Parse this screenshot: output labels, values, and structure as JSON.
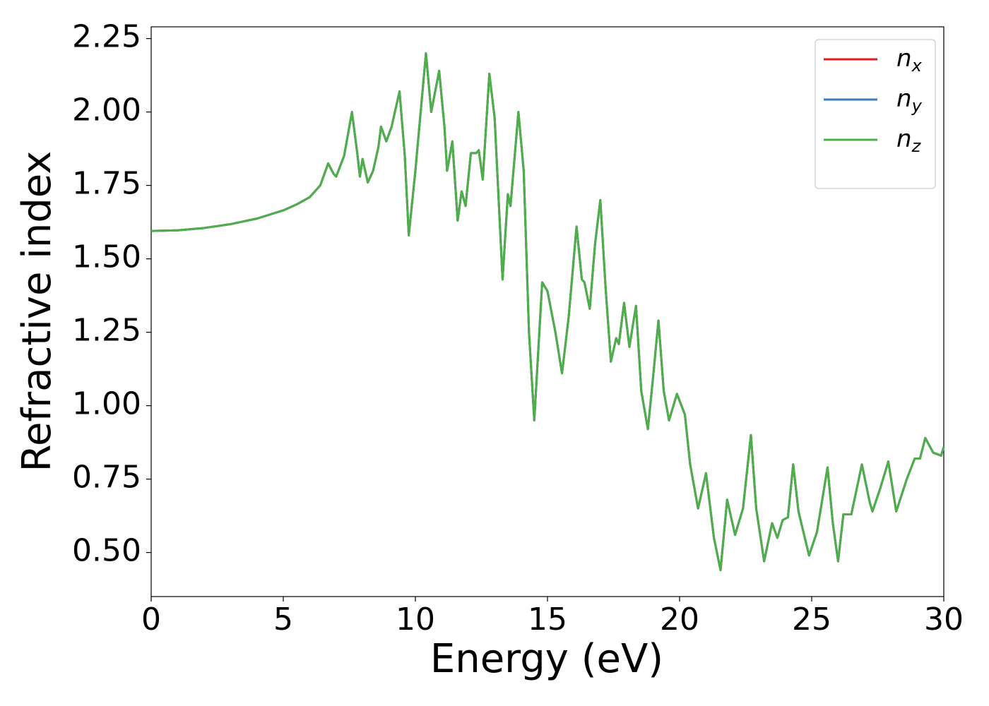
{
  "chart_data": {
    "type": "line",
    "xlabel": "Energy (eV)",
    "ylabel": "Refractive index",
    "x": [
      0,
      1,
      2,
      3,
      4,
      5,
      5.5,
      6,
      6.4,
      6.7,
      6.9,
      7.0,
      7.3,
      7.6,
      7.8,
      7.9,
      8.0,
      8.2,
      8.4,
      8.6,
      8.7,
      8.9,
      9.1,
      9.4,
      9.6,
      9.75,
      10.0,
      10.2,
      10.4,
      10.6,
      10.9,
      11.1,
      11.2,
      11.4,
      11.6,
      11.75,
      11.9,
      12.1,
      12.3,
      12.4,
      12.55,
      12.8,
      13.0,
      13.3,
      13.5,
      13.6,
      13.9,
      14.1,
      14.3,
      14.5,
      14.8,
      15.0,
      15.3,
      15.55,
      15.8,
      16.1,
      16.3,
      16.4,
      16.6,
      16.8,
      17.0,
      17.2,
      17.4,
      17.6,
      17.7,
      17.9,
      18.1,
      18.35,
      18.55,
      18.8,
      19.0,
      19.2,
      19.4,
      19.6,
      19.9,
      20.2,
      20.4,
      20.7,
      21.0,
      21.3,
      21.55,
      21.8,
      22.1,
      22.4,
      22.7,
      22.9,
      23.2,
      23.5,
      23.7,
      23.9,
      24.1,
      24.3,
      24.5,
      24.9,
      25.2,
      25.6,
      25.8,
      26.0,
      26.2,
      26.5,
      26.9,
      27.2,
      27.3,
      27.6,
      27.9,
      28.2,
      28.6,
      28.9,
      29.1,
      29.3,
      29.6,
      29.9,
      30
    ],
    "series": [
      {
        "name": "nx",
        "color": "#e41a1c",
        "values": [
          1.595,
          1.597,
          1.605,
          1.618,
          1.637,
          1.665,
          1.685,
          1.71,
          1.75,
          1.825,
          1.79,
          1.78,
          1.85,
          2.0,
          1.86,
          1.78,
          1.84,
          1.76,
          1.8,
          1.88,
          1.95,
          1.9,
          1.95,
          2.07,
          1.85,
          1.58,
          1.8,
          2.0,
          2.2,
          2.0,
          2.14,
          1.95,
          1.8,
          1.9,
          1.63,
          1.73,
          1.68,
          1.86,
          1.86,
          1.87,
          1.77,
          2.13,
          1.98,
          1.43,
          1.72,
          1.68,
          2.0,
          1.8,
          1.25,
          0.95,
          1.42,
          1.39,
          1.25,
          1.11,
          1.3,
          1.61,
          1.43,
          1.42,
          1.33,
          1.55,
          1.7,
          1.4,
          1.15,
          1.23,
          1.21,
          1.35,
          1.2,
          1.34,
          1.05,
          0.92,
          1.1,
          1.29,
          1.05,
          0.95,
          1.04,
          0.97,
          0.8,
          0.65,
          0.77,
          0.55,
          0.44,
          0.68,
          0.56,
          0.65,
          0.9,
          0.65,
          0.47,
          0.6,
          0.55,
          0.61,
          0.62,
          0.8,
          0.64,
          0.49,
          0.57,
          0.79,
          0.6,
          0.47,
          0.63,
          0.63,
          0.8,
          0.67,
          0.64,
          0.72,
          0.81,
          0.64,
          0.75,
          0.82,
          0.82,
          0.89,
          0.84,
          0.83,
          0.86
        ]
      },
      {
        "name": "ny",
        "color": "#377eb8",
        "values": [
          1.595,
          1.597,
          1.605,
          1.618,
          1.637,
          1.665,
          1.685,
          1.71,
          1.75,
          1.825,
          1.79,
          1.78,
          1.85,
          2.0,
          1.86,
          1.78,
          1.84,
          1.76,
          1.8,
          1.88,
          1.95,
          1.9,
          1.95,
          2.07,
          1.85,
          1.58,
          1.8,
          2.0,
          2.2,
          2.0,
          2.14,
          1.95,
          1.8,
          1.9,
          1.63,
          1.73,
          1.68,
          1.86,
          1.86,
          1.87,
          1.77,
          2.13,
          1.98,
          1.43,
          1.72,
          1.68,
          2.0,
          1.8,
          1.25,
          0.95,
          1.42,
          1.39,
          1.25,
          1.11,
          1.3,
          1.61,
          1.43,
          1.42,
          1.33,
          1.55,
          1.7,
          1.4,
          1.15,
          1.23,
          1.21,
          1.35,
          1.2,
          1.34,
          1.05,
          0.92,
          1.1,
          1.29,
          1.05,
          0.95,
          1.04,
          0.97,
          0.8,
          0.65,
          0.77,
          0.55,
          0.44,
          0.68,
          0.56,
          0.65,
          0.9,
          0.65,
          0.47,
          0.6,
          0.55,
          0.61,
          0.62,
          0.8,
          0.64,
          0.49,
          0.57,
          0.79,
          0.6,
          0.47,
          0.63,
          0.63,
          0.8,
          0.67,
          0.64,
          0.72,
          0.81,
          0.64,
          0.75,
          0.82,
          0.82,
          0.89,
          0.84,
          0.83,
          0.86
        ]
      },
      {
        "name": "nz",
        "color": "#4daf4a",
        "values": [
          1.595,
          1.597,
          1.605,
          1.618,
          1.637,
          1.665,
          1.685,
          1.71,
          1.75,
          1.825,
          1.79,
          1.78,
          1.85,
          2.0,
          1.86,
          1.78,
          1.84,
          1.76,
          1.8,
          1.88,
          1.95,
          1.9,
          1.95,
          2.07,
          1.85,
          1.58,
          1.8,
          2.0,
          2.2,
          2.0,
          2.14,
          1.95,
          1.8,
          1.9,
          1.63,
          1.73,
          1.68,
          1.86,
          1.86,
          1.87,
          1.77,
          2.13,
          1.98,
          1.43,
          1.72,
          1.68,
          2.0,
          1.8,
          1.25,
          0.95,
          1.42,
          1.39,
          1.25,
          1.11,
          1.3,
          1.61,
          1.43,
          1.42,
          1.33,
          1.55,
          1.7,
          1.4,
          1.15,
          1.23,
          1.21,
          1.35,
          1.2,
          1.34,
          1.05,
          0.92,
          1.1,
          1.29,
          1.05,
          0.95,
          1.04,
          0.97,
          0.8,
          0.65,
          0.77,
          0.55,
          0.44,
          0.68,
          0.56,
          0.65,
          0.9,
          0.65,
          0.47,
          0.6,
          0.55,
          0.61,
          0.62,
          0.8,
          0.64,
          0.49,
          0.57,
          0.79,
          0.6,
          0.47,
          0.63,
          0.63,
          0.8,
          0.67,
          0.64,
          0.72,
          0.81,
          0.64,
          0.75,
          0.82,
          0.82,
          0.89,
          0.84,
          0.83,
          0.86
        ]
      }
    ],
    "xlim": [
      0,
      30
    ],
    "xticks": [
      0,
      5,
      10,
      15,
      20,
      25,
      30
    ],
    "ylim": [
      0.35,
      2.29
    ],
    "yticks": [
      {
        "value": 0.5,
        "label": "0.50"
      },
      {
        "value": 0.75,
        "label": "0.75"
      },
      {
        "value": 1.0,
        "label": "1.00"
      },
      {
        "value": 1.25,
        "label": "1.25"
      },
      {
        "value": 1.5,
        "label": "1.50"
      },
      {
        "value": 1.75,
        "label": "1.75"
      },
      {
        "value": 2.0,
        "label": "2.00"
      },
      {
        "value": 2.25,
        "label": "2.25"
      }
    ],
    "grid": false,
    "legend": "upper right"
  }
}
